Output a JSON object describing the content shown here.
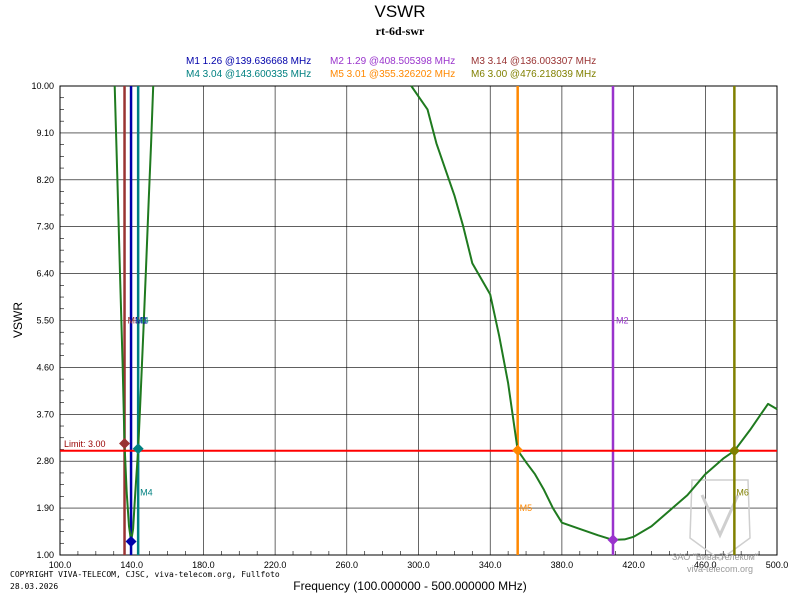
{
  "chart_data": {
    "type": "line",
    "title": "VSWR",
    "subtitle": "rt-6d-swr",
    "xlabel": "Frequency (100.000000 - 500.000000 MHz)",
    "ylabel": "VSWR",
    "xlim": [
      100,
      500
    ],
    "ylim": [
      1.0,
      10.0
    ],
    "x_ticks": [
      100,
      140,
      180,
      220,
      260,
      300,
      340,
      380,
      420,
      460,
      500
    ],
    "x_tick_labels": [
      "100.0",
      "140.0",
      "180.0",
      "220.0",
      "260.0",
      "300.0",
      "340.0",
      "380.0",
      "420.0",
      "460.0",
      "500.0"
    ],
    "y_ticks": [
      1.0,
      1.9,
      2.8,
      3.7,
      4.6,
      5.5,
      6.4,
      7.3,
      8.2,
      9.1,
      10.0
    ],
    "y_tick_labels": [
      "1.00",
      "1.90",
      "2.80",
      "3.70",
      "4.60",
      "5.50",
      "6.40",
      "7.30",
      "8.20",
      "9.10",
      "10.00"
    ],
    "grid": true,
    "limit": {
      "value": 3.0,
      "label": "Limit: 3.00",
      "color": "#ff0000"
    },
    "series": [
      {
        "name": "VSWR",
        "color": "#1f7a1f",
        "points": [
          [
            130.5,
            10.0
          ],
          [
            132.0,
            8.2
          ],
          [
            133.5,
            6.4
          ],
          [
            135.0,
            4.6
          ],
          [
            136.0,
            3.14
          ],
          [
            137.2,
            2.2
          ],
          [
            138.5,
            1.55
          ],
          [
            139.64,
            1.26
          ],
          [
            140.8,
            1.5
          ],
          [
            142.0,
            2.2
          ],
          [
            143.6,
            3.04
          ],
          [
            145.0,
            4.1
          ],
          [
            146.5,
            5.3
          ],
          [
            148.0,
            6.5
          ],
          [
            149.5,
            7.8
          ],
          [
            150.8,
            8.9
          ],
          [
            152.0,
            10.0
          ],
          [
            296.0,
            10.0
          ],
          [
            300.0,
            9.8
          ],
          [
            305.0,
            9.55
          ],
          [
            310.0,
            8.9
          ],
          [
            315.0,
            8.4
          ],
          [
            320.0,
            7.9
          ],
          [
            325.0,
            7.3
          ],
          [
            330.0,
            6.6
          ],
          [
            335.0,
            6.3
          ],
          [
            340.0,
            6.0
          ],
          [
            345.0,
            5.2
          ],
          [
            350.0,
            4.3
          ],
          [
            355.33,
            3.01
          ],
          [
            360.0,
            2.78
          ],
          [
            365.0,
            2.55
          ],
          [
            370.0,
            2.25
          ],
          [
            375.0,
            1.9
          ],
          [
            380.0,
            1.62
          ],
          [
            390.0,
            1.5
          ],
          [
            400.0,
            1.38
          ],
          [
            408.5,
            1.29
          ],
          [
            415.0,
            1.3
          ],
          [
            420.0,
            1.35
          ],
          [
            430.0,
            1.55
          ],
          [
            440.0,
            1.85
          ],
          [
            450.0,
            2.15
          ],
          [
            460.0,
            2.55
          ],
          [
            470.0,
            2.85
          ],
          [
            476.22,
            3.0
          ],
          [
            485.0,
            3.4
          ],
          [
            495.0,
            3.9
          ],
          [
            500.0,
            3.8
          ]
        ]
      }
    ],
    "markers": [
      {
        "id": "M1",
        "x": 139.636668,
        "y": 1.26,
        "text": "M1   1.26 @139.636668 MHz",
        "color": "#0000aa"
      },
      {
        "id": "M2",
        "x": 408.505398,
        "y": 1.29,
        "text": "M2   1.29 @408.505398 MHz",
        "color": "#9933cc"
      },
      {
        "id": "M3",
        "x": 136.003307,
        "y": 3.14,
        "text": "M3   3.14 @136.003307 MHz",
        "color": "#993333"
      },
      {
        "id": "M4",
        "x": 143.600335,
        "y": 3.04,
        "text": "M4   3.04 @143.600335 MHz",
        "color": "#008080"
      },
      {
        "id": "M5",
        "x": 355.326202,
        "y": 3.01,
        "text": "M5   3.01 @355.326202 MHz",
        "color": "#ff8800"
      },
      {
        "id": "M6",
        "x": 476.218039,
        "y": 3.0,
        "text": "M6   3.00 @476.218039 MHz",
        "color": "#808000"
      }
    ],
    "plot_labels": [
      {
        "text": "M3",
        "color": "#993333"
      },
      {
        "text": "M1",
        "color": "#0000aa"
      },
      {
        "text": "M4",
        "color": "#008080"
      },
      {
        "text": "M2",
        "color": "#9933cc"
      },
      {
        "text": "M4",
        "color": "#008080"
      },
      {
        "text": "M5",
        "color": "#ff8800"
      },
      {
        "text": "M6",
        "color": "#808000"
      }
    ]
  },
  "footer": {
    "copyright": "COPYRIGHT VIVA-TELECOM, CJSC, viva-telecom.org, Fullfoto",
    "date": "28.03.2026"
  },
  "watermark": {
    "line1": "ЗАО \"Вива-Телеком\"",
    "line2": "viva-telecom.org"
  }
}
